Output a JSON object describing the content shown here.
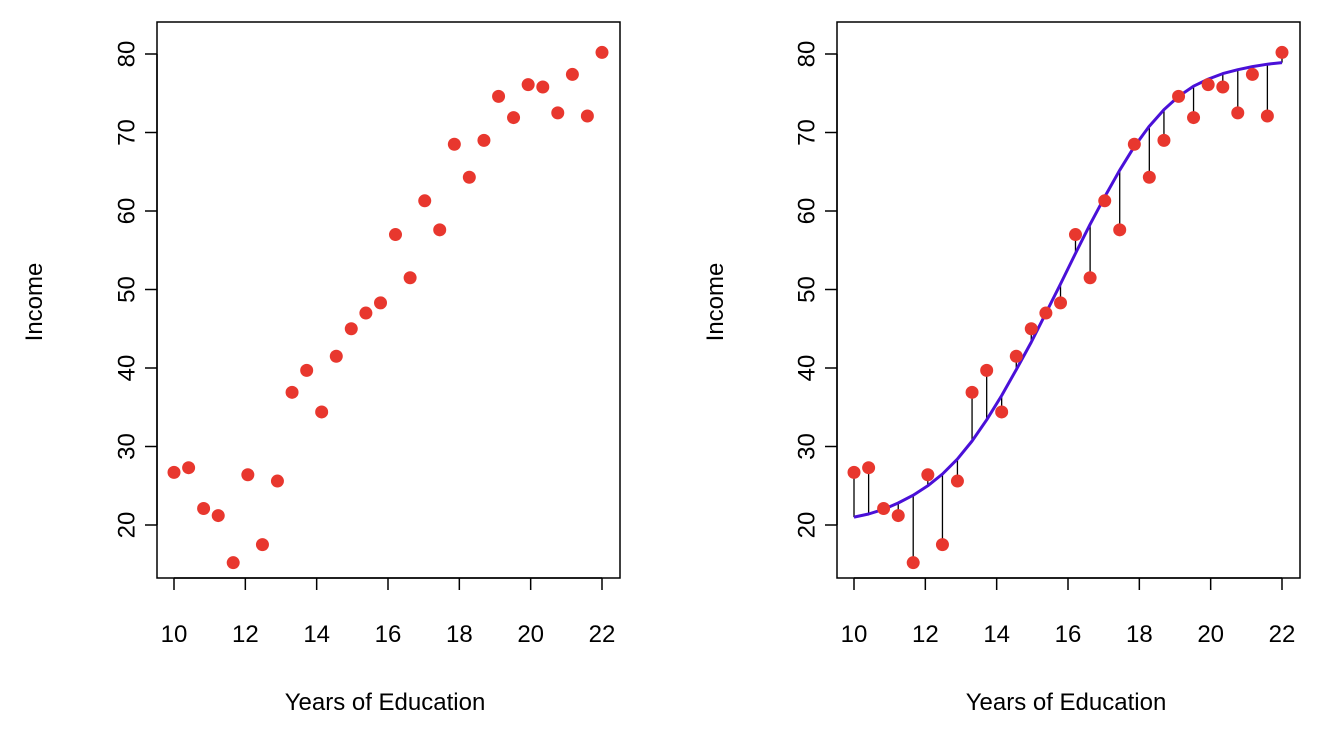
{
  "chart_data": [
    {
      "type": "scatter",
      "xlabel": "Years of Education",
      "ylabel": "Income",
      "xlim": [
        10,
        22
      ],
      "ylim": [
        15,
        80
      ],
      "xticks": [
        "10",
        "12",
        "14",
        "16",
        "18",
        "20",
        "22"
      ],
      "yticks": [
        "20",
        "30",
        "40",
        "50",
        "60",
        "70",
        "80"
      ],
      "grid": false,
      "point_color": "#e8372e",
      "x": [
        10.0,
        10.41,
        10.83,
        11.24,
        11.66,
        12.07,
        12.48,
        12.9,
        13.31,
        13.72,
        14.14,
        14.55,
        14.97,
        15.38,
        15.79,
        16.21,
        16.62,
        17.03,
        17.45,
        17.86,
        18.28,
        18.69,
        19.1,
        19.52,
        19.93,
        20.34,
        20.76,
        21.17,
        21.59,
        22.0
      ],
      "y": [
        26.7,
        27.3,
        22.1,
        21.2,
        15.2,
        26.4,
        17.5,
        25.6,
        36.9,
        39.7,
        34.4,
        41.5,
        45.0,
        47.0,
        48.3,
        57.0,
        51.5,
        61.3,
        57.6,
        68.5,
        64.3,
        69.0,
        74.6,
        71.9,
        76.1,
        75.8,
        72.5,
        77.4,
        72.1,
        80.2
      ]
    },
    {
      "type": "scatter",
      "xlabel": "Years of Education",
      "ylabel": "Income",
      "xlim": [
        10,
        22
      ],
      "ylim": [
        15,
        80
      ],
      "xticks": [
        "10",
        "12",
        "14",
        "16",
        "18",
        "20",
        "22"
      ],
      "yticks": [
        "20",
        "30",
        "40",
        "50",
        "60",
        "70",
        "80"
      ],
      "grid": false,
      "point_color": "#e8372e",
      "fit_color": "#4a10d8",
      "residual_color": "#000000",
      "x": [
        10.0,
        10.41,
        10.83,
        11.24,
        11.66,
        12.07,
        12.48,
        12.9,
        13.31,
        13.72,
        14.14,
        14.55,
        14.97,
        15.38,
        15.79,
        16.21,
        16.62,
        17.03,
        17.45,
        17.86,
        18.28,
        18.69,
        19.1,
        19.52,
        19.93,
        20.34,
        20.76,
        21.17,
        21.59,
        22.0
      ],
      "y": [
        26.7,
        27.3,
        22.1,
        21.2,
        15.2,
        26.4,
        17.5,
        25.6,
        36.9,
        39.7,
        34.4,
        41.5,
        45.0,
        47.0,
        48.3,
        57.0,
        51.5,
        61.3,
        57.6,
        68.5,
        64.3,
        69.0,
        74.6,
        71.9,
        76.1,
        75.8,
        72.5,
        77.4,
        72.1,
        80.2
      ],
      "fitted": [
        21.0,
        21.4,
        22.0,
        22.8,
        23.8,
        25.0,
        26.5,
        28.4,
        30.7,
        33.4,
        36.5,
        39.8,
        43.3,
        47.0,
        50.7,
        54.6,
        58.3,
        61.8,
        65.2,
        68.2,
        70.8,
        72.9,
        74.6,
        75.9,
        76.8,
        77.5,
        78.0,
        78.4,
        78.7,
        78.9
      ]
    }
  ]
}
